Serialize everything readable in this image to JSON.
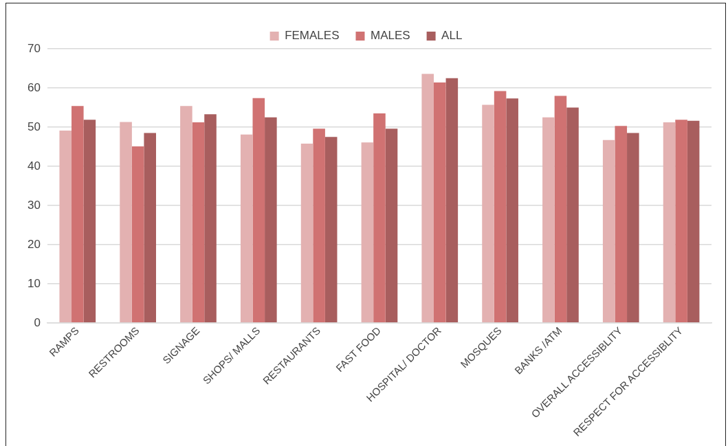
{
  "chart_data": {
    "type": "bar",
    "categories": [
      "RAMPS",
      "RESTROOMS",
      "SIGNAGE",
      "SHOPS/ MALLS",
      "RESTAURANTS",
      "FAST FOOD",
      "HOSPITAL/ DOCTOR",
      "MOSQUES",
      "BANKS /ATM",
      "OVERALL ACCESSIBLITY",
      "RESPECT FOR ACCESSIBLITY"
    ],
    "series": [
      {
        "name": "FEMALES",
        "color": "#e3b1b1",
        "values": [
          49.1,
          51.3,
          55.4,
          48.1,
          45.8,
          46.1,
          63.6,
          55.7,
          52.5,
          46.7,
          51.2
        ]
      },
      {
        "name": "MALES",
        "color": "#d07272",
        "values": [
          55.4,
          45.1,
          51.2,
          57.4,
          49.6,
          53.5,
          61.4,
          59.2,
          58.0,
          50.3,
          51.9
        ]
      },
      {
        "name": "ALL",
        "color": "#a85e5e",
        "values": [
          51.9,
          48.5,
          53.3,
          52.5,
          47.5,
          49.6,
          62.5,
          57.3,
          55.0,
          48.5,
          51.6
        ]
      }
    ],
    "ylim": [
      0,
      70
    ],
    "yticks": [
      0,
      10,
      20,
      30,
      40,
      50,
      60,
      70
    ],
    "grid": "y",
    "legend": "top"
  }
}
